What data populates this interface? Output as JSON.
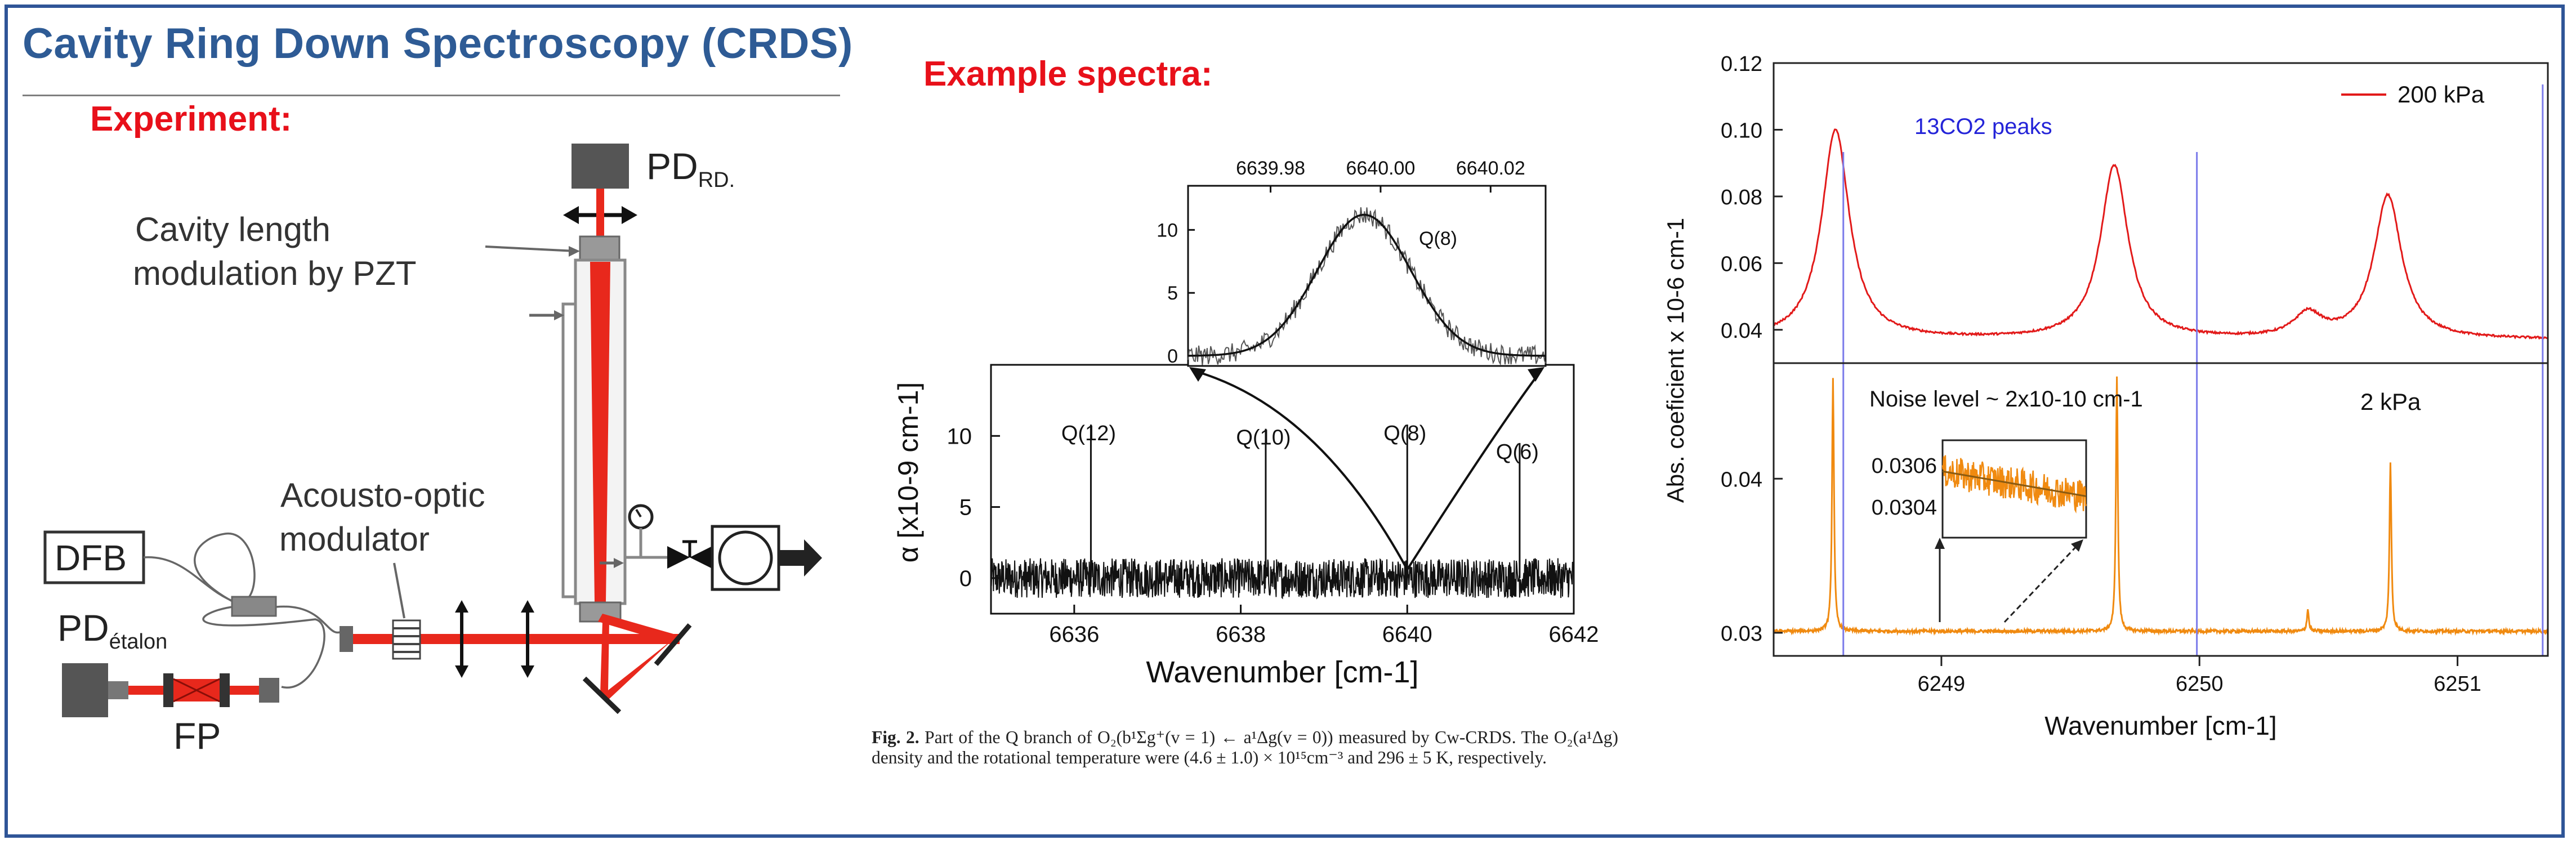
{
  "slide": {
    "title": "Cavity Ring Down Spectroscopy (CRDS)",
    "experiment_heading": "Experiment:",
    "spectra_heading": "Example spectra:"
  },
  "apparatus": {
    "pd_rd_main": "PD",
    "pd_rd_sub": "RD.",
    "cavity_label_line1": "Cavity length",
    "cavity_label_line2": "modulation by PZT",
    "aom_label_line1": "Acousto-optic",
    "aom_label_line2": "modulator",
    "dfb_label": "DFB",
    "pd_etalon_main": "PD",
    "pd_etalon_sub": "étalon",
    "fp_label": "FP"
  },
  "caption": {
    "figure_label": "Fig. 2.",
    "text": "Part of the Q branch of O₂(b¹Σg⁺(v = 1) ← a¹Δg(v = 0)) measured by Cw-CRDS. The O₂(a¹Δg) density and the rotational temperature were (4.6 ± 1.0) × 10¹⁵cm⁻³ and 296 ± 5 K, respectively."
  },
  "colors": {
    "title_blue": "#2e5b95",
    "heading_red": "#e8101a",
    "frame_blue": "#2f5597",
    "laser_red": "#e8281c",
    "series_200kpa": "#e21a1a",
    "series_2kpa": "#f08a10",
    "marker_lines": "#7b7bea"
  },
  "chart_data": [
    {
      "id": "o2_spectrum",
      "type": "line",
      "xlabel": "Wavenumber [cm-1]",
      "ylabel": "α [x10-9 cm-1]",
      "xlim": [
        6635,
        6642
      ],
      "ylim": [
        -2.5,
        15
      ],
      "xticks": [
        "6636",
        "6638",
        "6640",
        "6642"
      ],
      "yticks": [
        "0",
        "5",
        "10"
      ],
      "baseline": 0,
      "noise_peak_to_peak": 2.8,
      "peaks": [
        {
          "label": "Q(12)",
          "x": 6636.2,
          "y": 10.8
        },
        {
          "label": "Q(10)",
          "x": 6638.3,
          "y": 10.5
        },
        {
          "label": "Q(8)",
          "x": 6640.0,
          "y": 10.8
        },
        {
          "label": "Q(6)",
          "x": 6641.35,
          "y": 9.5
        }
      ],
      "grid": false
    },
    {
      "id": "q8_inset",
      "type": "line",
      "x_top_ticks": [
        "6639.98",
        "6640.00",
        "6640.02"
      ],
      "yticks": [
        "0",
        "5",
        "10"
      ],
      "xlim": [
        6639.965,
        6640.03
      ],
      "ylim": [
        -0.8,
        13.5
      ],
      "peak_label": "Q(8)",
      "peak_center": 6639.997,
      "peak_height": 11.2,
      "peak_width": 0.0085,
      "grid": false
    },
    {
      "id": "co2_200kpa",
      "type": "line",
      "series": [
        {
          "name": "200 kPa"
        }
      ],
      "annotation": "13CO2 peaks",
      "ylabel": "Abs. coeficient x 10-6 cm-1",
      "yticks": [
        "0.04",
        "0.06",
        "0.08",
        "0.10",
        "0.12"
      ],
      "ylim": [
        0.03,
        0.12
      ],
      "xlim": [
        6248.35,
        6251.35
      ],
      "baseline": 0.037,
      "peaks": [
        {
          "x": 6248.59,
          "y": 0.1
        },
        {
          "x": 6249.67,
          "y": 0.089
        },
        {
          "x": 6250.42,
          "y": 0.044
        },
        {
          "x": 6250.73,
          "y": 0.08
        }
      ],
      "grid": false
    },
    {
      "id": "co2_2kpa",
      "type": "line",
      "series": [
        {
          "name": "2 kPa"
        }
      ],
      "annotation": "Noise level ~ 2x10-10 cm-1",
      "xlabel": "Wavenumber [cm-1]",
      "xticks": [
        "6249",
        "6250",
        "6251"
      ],
      "yticks": [
        "0.03",
        "0.04"
      ],
      "xlim": [
        6248.35,
        6251.35
      ],
      "ylim": [
        0.0285,
        0.0475
      ],
      "baseline": 0.0301,
      "peaks": [
        {
          "x": 6248.58,
          "y": 0.0465
        },
        {
          "x": 6249.68,
          "y": 0.0466
        },
        {
          "x": 6250.42,
          "y": 0.0315
        },
        {
          "x": 6250.74,
          "y": 0.041
        }
      ],
      "marker_lines_x": [
        6248.62,
        6249.99,
        6251.33
      ],
      "grid": false
    },
    {
      "id": "noise_inset",
      "type": "line",
      "yticks": [
        "0.0306",
        "0.0304"
      ],
      "ylim": [
        0.03025,
        0.03072
      ],
      "y_start": 0.03057,
      "y_end": 0.03045,
      "grid": false
    }
  ]
}
